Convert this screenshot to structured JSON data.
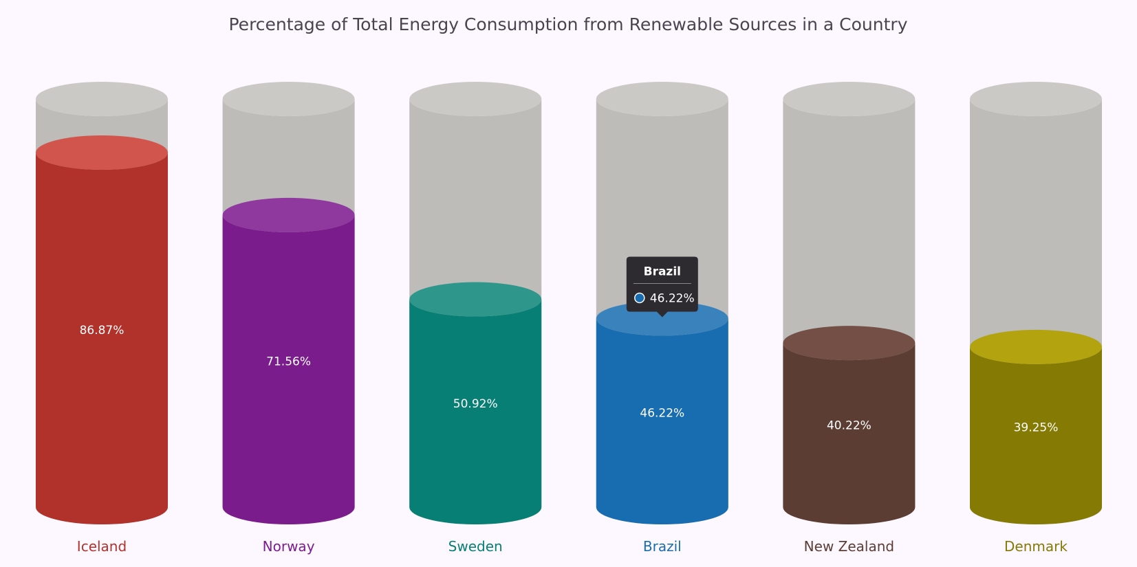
{
  "chart_data": {
    "type": "bar",
    "subtype": "cylinder",
    "title": "Percentage of Total Energy Consumption from Renewable Sources in a Country",
    "xlabel": "",
    "ylabel": "",
    "ylim": [
      0,
      100
    ],
    "grid": false,
    "categories": [
      "Iceland",
      "Norway",
      "Sweden",
      "Brazil",
      "New Zealand",
      "Denmark"
    ],
    "values": [
      86.87,
      71.56,
      50.92,
      46.22,
      40.22,
      39.25
    ],
    "data_labels": [
      "86.87%",
      "71.56%",
      "50.92%",
      "46.22%",
      "40.22%",
      "39.25%"
    ],
    "colors": [
      "#b0322b",
      "#7b1c8d",
      "#087f74",
      "#186db0",
      "#5b3d34",
      "#857a03"
    ],
    "top_colors": [
      "#d2554d",
      "#8f389e",
      "#2e968a",
      "#3a82bc",
      "#734f45",
      "#b3a30e"
    ],
    "track_color": "#bdbcb9",
    "track_top_color": "#cac9c6"
  },
  "tooltip": {
    "title": "Brazil",
    "value": "46.22%",
    "marker_color": "#186db0"
  }
}
